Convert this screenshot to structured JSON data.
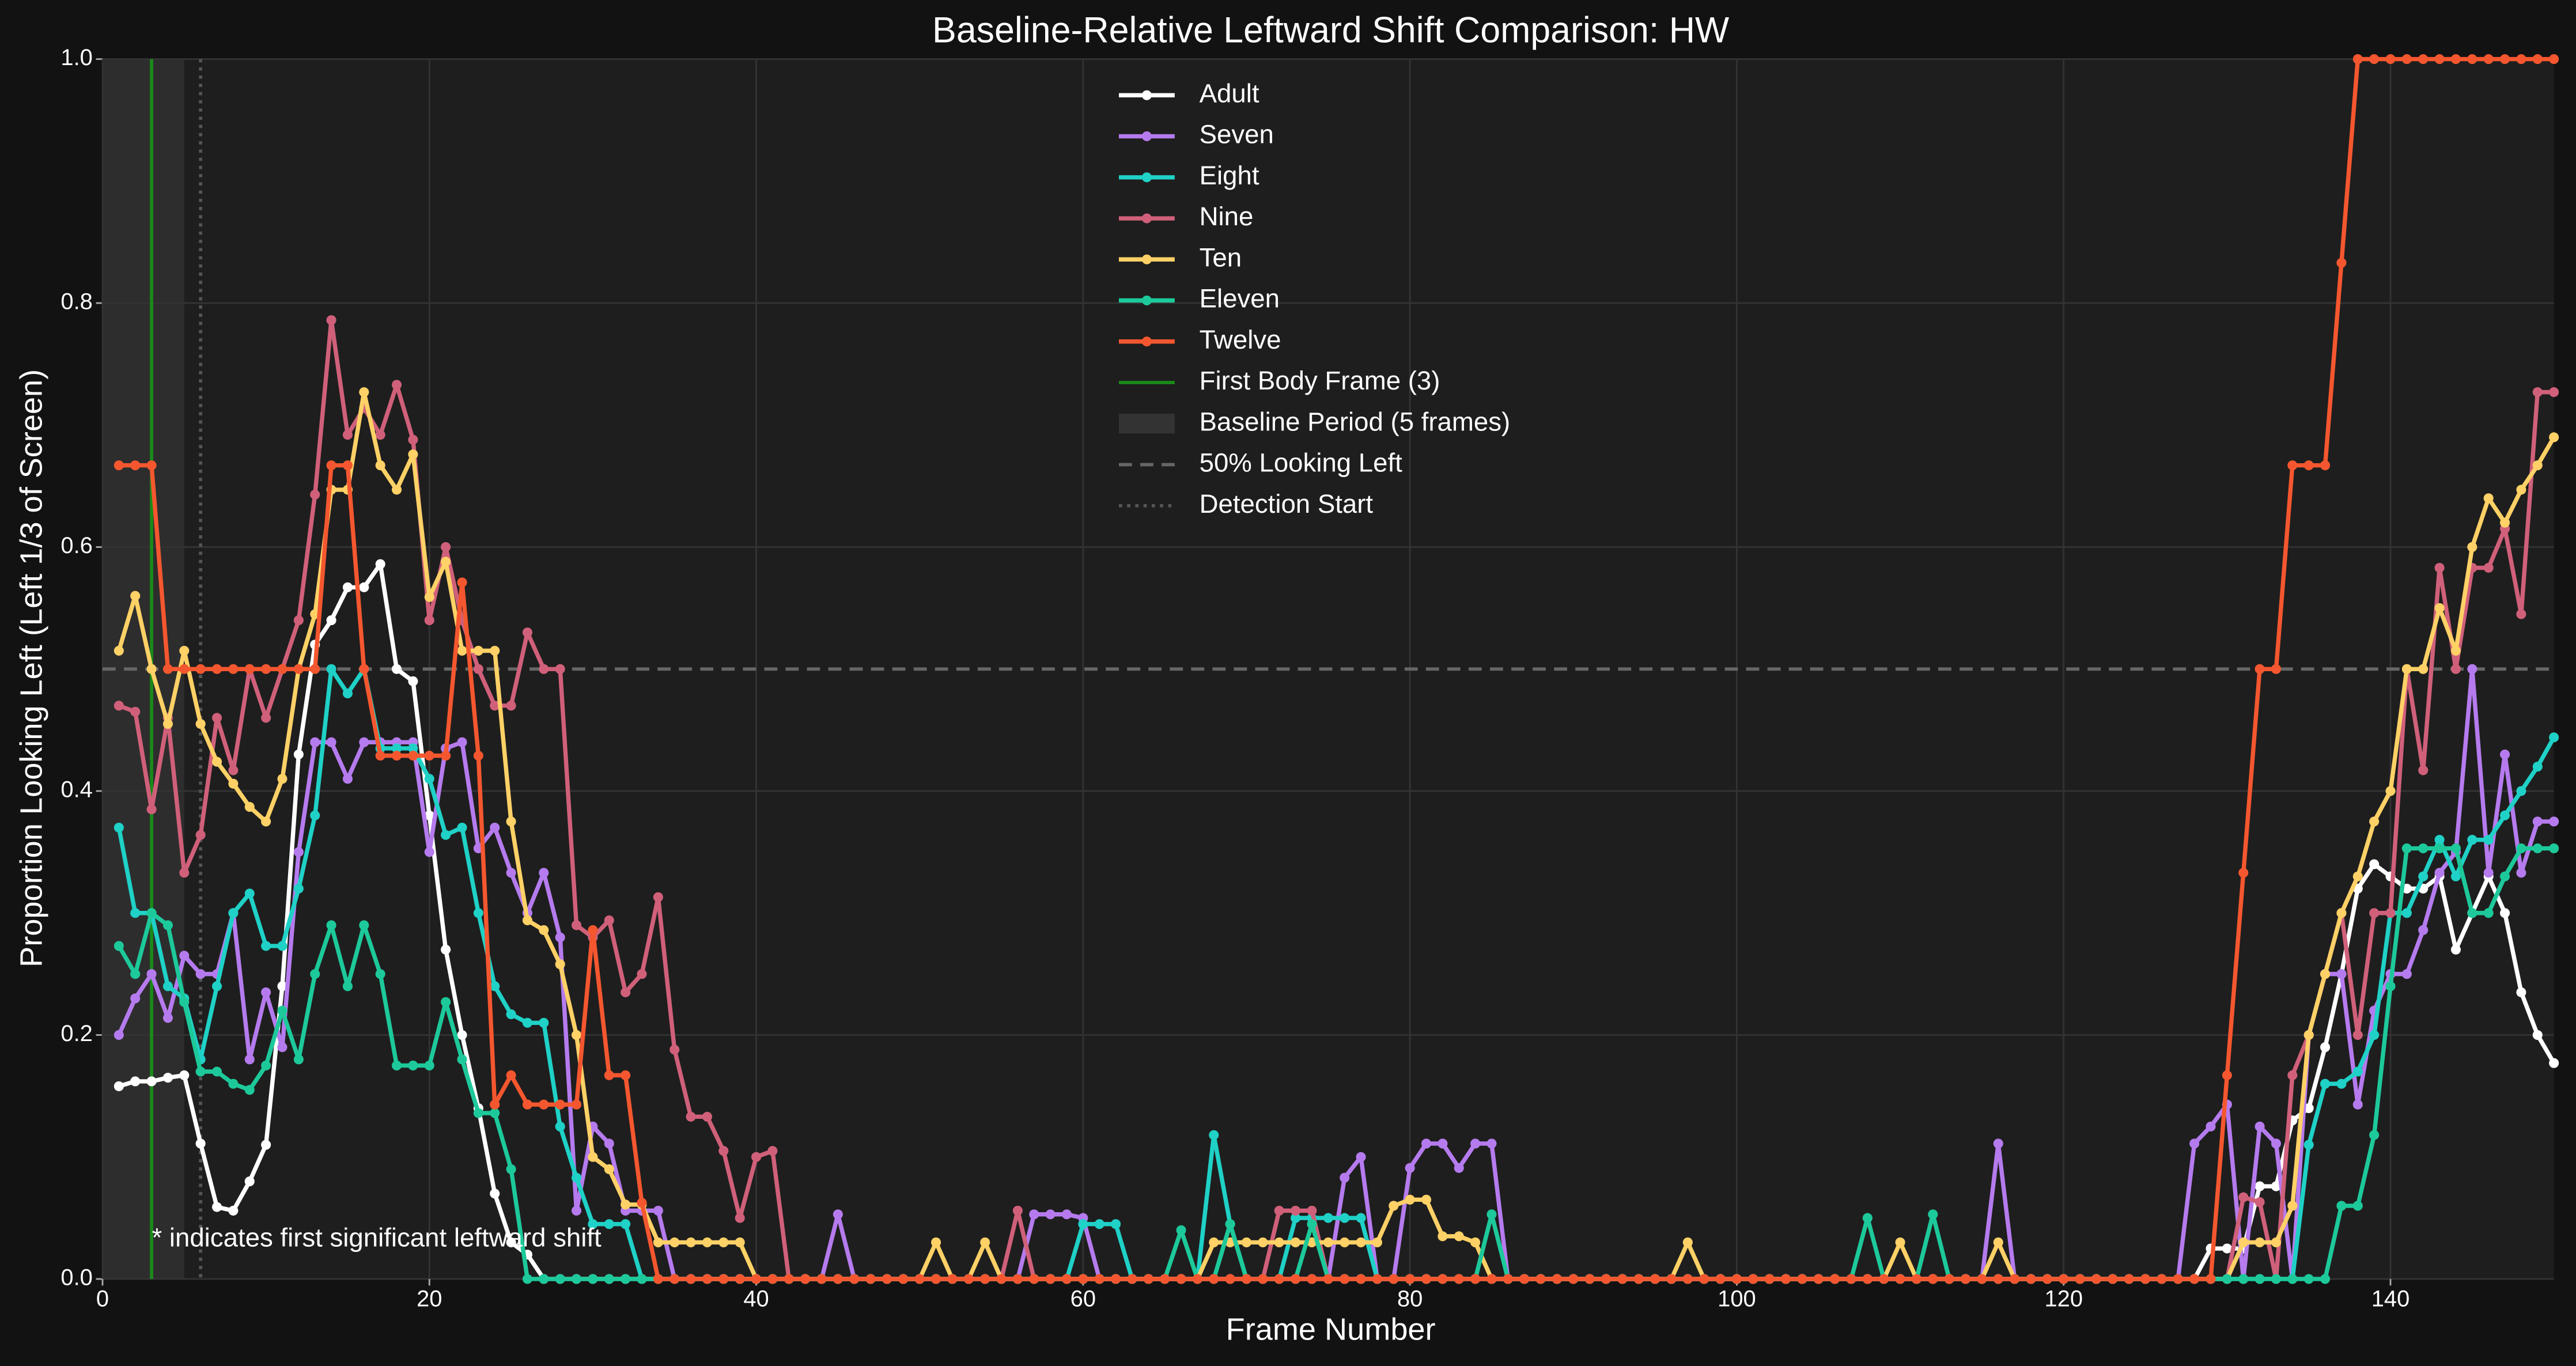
{
  "chart_data": {
    "type": "line",
    "title": "Baseline-Relative Leftward Shift Comparison: HW",
    "x_label": "Frame Number",
    "y_label": "Proportion Looking Left (Left 1/3 of Screen)",
    "annotation": "* indicates first significant leftward shift",
    "xlim": [
      0,
      150
    ],
    "ylim": [
      0,
      1
    ],
    "xticks": [
      0,
      20,
      40,
      60,
      80,
      100,
      120,
      140
    ],
    "yticks": [
      {
        "value": 0,
        "label": "0.0"
      },
      0.2,
      0.4,
      0.6,
      0.8,
      {
        "value": 1,
        "label": "1.0"
      }
    ],
    "grid": true,
    "legend": "upper center",
    "x": [
      1,
      2,
      3,
      4,
      5,
      6,
      7,
      8,
      9,
      10,
      11,
      12,
      13,
      14,
      15,
      16,
      17,
      18,
      19,
      20,
      21,
      22,
      23,
      24,
      25,
      26,
      27,
      28,
      29,
      30,
      31,
      32,
      33,
      34,
      35,
      36,
      37,
      38,
      39,
      40,
      41,
      42,
      43,
      44,
      45,
      46,
      47,
      48,
      49,
      50,
      51,
      52,
      53,
      54,
      55,
      56,
      57,
      58,
      59,
      60,
      61,
      62,
      63,
      64,
      65,
      66,
      67,
      68,
      69,
      70,
      71,
      72,
      73,
      74,
      75,
      76,
      77,
      78,
      79,
      80,
      81,
      82,
      83,
      84,
      85,
      86,
      87,
      88,
      89,
      90,
      91,
      92,
      93,
      94,
      95,
      96,
      97,
      98,
      99,
      100,
      101,
      102,
      103,
      104,
      105,
      106,
      107,
      108,
      109,
      110,
      111,
      112,
      113,
      114,
      115,
      116,
      117,
      118,
      119,
      120,
      121,
      122,
      123,
      124,
      125,
      126,
      127,
      128,
      129,
      130,
      131,
      132,
      133,
      134,
      135,
      136,
      137,
      138,
      139,
      140,
      141,
      142,
      143,
      144,
      145,
      146,
      147,
      148,
      149,
      150
    ],
    "series": [
      {
        "name": "Adult",
        "color": "#ffffff",
        "values": [
          0.158,
          0.162,
          0.162,
          0.165,
          0.167,
          0.111,
          0.059,
          0.056,
          0.08,
          0.11,
          0.24,
          0.43,
          0.52,
          0.54,
          0.567,
          0.567,
          0.586,
          0.5,
          0.49,
          0.38,
          0.27,
          0.2,
          0.14,
          0.07,
          0.03,
          0.02,
          0,
          0,
          0,
          0,
          0,
          0,
          0,
          0,
          0,
          0,
          0,
          0,
          0,
          0,
          0,
          0,
          0,
          0,
          0,
          0,
          0,
          0,
          0,
          0,
          0,
          0,
          0,
          0,
          0,
          0,
          0,
          0,
          0,
          0,
          0,
          0,
          0,
          0,
          0,
          0,
          0,
          0,
          0,
          0,
          0,
          0,
          0,
          0,
          0,
          0,
          0,
          0,
          0,
          0,
          0,
          0,
          0,
          0,
          0,
          0,
          0,
          0,
          0,
          0,
          0,
          0,
          0,
          0,
          0,
          0,
          0,
          0,
          0,
          0,
          0,
          0,
          0,
          0,
          0,
          0,
          0,
          0,
          0,
          0,
          0,
          0,
          0,
          0,
          0,
          0,
          0,
          0,
          0,
          0,
          0,
          0,
          0,
          0,
          0,
          0,
          0,
          0,
          0.025,
          0.025,
          0.025,
          0.076,
          0.076,
          0.13,
          0.14,
          0.19,
          0.25,
          0.32,
          0.34,
          0.33,
          0.32,
          0.32,
          0.33,
          0.27,
          0.3,
          0.33,
          0.3,
          0.235,
          0.2,
          0.177
        ]
      },
      {
        "name": "Seven",
        "color": "#b57bee",
        "values": [
          0.2,
          0.23,
          0.25,
          0.214,
          0.265,
          0.25,
          0.25,
          0.3,
          0.18,
          0.235,
          0.19,
          0.35,
          0.44,
          0.44,
          0.41,
          0.44,
          0.44,
          0.44,
          0.44,
          0.35,
          0.435,
          0.44,
          0.353,
          0.37,
          0.333,
          0.3,
          0.333,
          0.28,
          0.056,
          0.125,
          0.111,
          0.056,
          0.056,
          0.056,
          0,
          0,
          0,
          0,
          0,
          0,
          0,
          0,
          0,
          0,
          0.053,
          0,
          0,
          0,
          0,
          0,
          0,
          0,
          0,
          0,
          0,
          0,
          0.053,
          0.053,
          0.053,
          0.05,
          0,
          0,
          0,
          0,
          0,
          0,
          0,
          0,
          0,
          0,
          0,
          0,
          0,
          0,
          0,
          0.083,
          0.1,
          0,
          0,
          0.091,
          0.111,
          0.111,
          0.091,
          0.111,
          0.111,
          0,
          0,
          0,
          0,
          0,
          0,
          0,
          0,
          0,
          0,
          0,
          0,
          0,
          0,
          0,
          0,
          0,
          0,
          0,
          0,
          0,
          0,
          0,
          0,
          0,
          0,
          0,
          0,
          0,
          0,
          0.111,
          0,
          0,
          0,
          0,
          0,
          0,
          0,
          0,
          0,
          0,
          0,
          0.111,
          0.125,
          0.143,
          0,
          0.125,
          0.111,
          0,
          0.2,
          0.25,
          0.25,
          0.143,
          0.22,
          0.25,
          0.25,
          0.286,
          0.333,
          0.35,
          0.5,
          0.333,
          0.43,
          0.333,
          0.375,
          0.375
        ]
      },
      {
        "name": "Eight",
        "color": "#1fd1c6",
        "values": [
          0.37,
          0.3,
          0.3,
          0.24,
          0.23,
          0.18,
          0.24,
          0.3,
          0.316,
          0.273,
          0.273,
          0.32,
          0.38,
          0.5,
          0.48,
          0.5,
          0.435,
          0.435,
          0.435,
          0.41,
          0.364,
          0.37,
          0.3,
          0.24,
          0.217,
          0.21,
          0.21,
          0.125,
          0.083,
          0.045,
          0.045,
          0.045,
          0,
          0,
          0,
          0,
          0,
          0,
          0,
          0,
          0,
          0,
          0,
          0,
          0,
          0,
          0,
          0,
          0,
          0,
          0,
          0,
          0,
          0,
          0,
          0,
          0,
          0,
          0,
          0.045,
          0.045,
          0.045,
          0,
          0,
          0,
          0,
          0,
          0.118,
          0.045,
          0,
          0,
          0,
          0.05,
          0.05,
          0.05,
          0.05,
          0.05,
          0,
          0,
          0,
          0,
          0,
          0,
          0,
          0,
          0,
          0,
          0,
          0,
          0,
          0,
          0,
          0,
          0,
          0,
          0,
          0,
          0,
          0,
          0,
          0,
          0,
          0,
          0,
          0,
          0,
          0,
          0,
          0,
          0,
          0,
          0,
          0,
          0,
          0,
          0,
          0,
          0,
          0,
          0,
          0,
          0,
          0,
          0,
          0,
          0,
          0,
          0,
          0,
          0,
          0,
          0,
          0,
          0,
          0.11,
          0.16,
          0.16,
          0.17,
          0.2,
          0.3,
          0.3,
          0.33,
          0.36,
          0.33,
          0.36,
          0.36,
          0.38,
          0.4,
          0.42,
          0.444
        ]
      },
      {
        "name": "Nine",
        "color": "#d0607a",
        "values": [
          0.47,
          0.465,
          0.385,
          0.46,
          0.333,
          0.364,
          0.46,
          0.417,
          0.5,
          0.46,
          0.5,
          0.54,
          0.643,
          0.786,
          0.692,
          0.714,
          0.692,
          0.733,
          0.688,
          0.54,
          0.6,
          0.54,
          0.5,
          0.47,
          0.47,
          0.53,
          0.5,
          0.5,
          0.29,
          0.28,
          0.294,
          0.235,
          0.25,
          0.313,
          0.188,
          0.133,
          0.133,
          0.105,
          0.05,
          0.1,
          0.105,
          0,
          0,
          0,
          0,
          0,
          0,
          0,
          0,
          0,
          0,
          0,
          0,
          0,
          0,
          0.056,
          0,
          0,
          0,
          0,
          0,
          0,
          0,
          0,
          0,
          0,
          0,
          0,
          0,
          0,
          0,
          0.056,
          0.056,
          0.056,
          0,
          0,
          0,
          0,
          0,
          0,
          0,
          0,
          0,
          0,
          0,
          0,
          0,
          0,
          0,
          0,
          0,
          0,
          0,
          0,
          0,
          0,
          0,
          0,
          0,
          0,
          0,
          0,
          0,
          0,
          0,
          0,
          0,
          0,
          0,
          0,
          0,
          0,
          0,
          0,
          0,
          0,
          0,
          0,
          0,
          0,
          0,
          0,
          0,
          0,
          0,
          0,
          0,
          0,
          0,
          0,
          0.067,
          0.063,
          0,
          0.167,
          0.2,
          0.25,
          0.3,
          0.2,
          0.3,
          0.3,
          0.5,
          0.417,
          0.583,
          0.5,
          0.583,
          0.583,
          0.615,
          0.545,
          0.727,
          0.727
        ]
      },
      {
        "name": "Ten",
        "color": "#ffd166",
        "values": [
          0.515,
          0.56,
          0.5,
          0.455,
          0.515,
          0.455,
          0.424,
          0.406,
          0.387,
          0.375,
          0.41,
          0.5,
          0.545,
          0.647,
          0.647,
          0.727,
          0.667,
          0.647,
          0.676,
          0.559,
          0.588,
          0.515,
          0.515,
          0.515,
          0.375,
          0.294,
          0.286,
          0.258,
          0.2,
          0.1,
          0.09,
          0.061,
          0.061,
          0.03,
          0.03,
          0.03,
          0.03,
          0.03,
          0.03,
          0,
          0,
          0,
          0,
          0,
          0,
          0,
          0,
          0,
          0,
          0,
          0.03,
          0,
          0,
          0.03,
          0,
          0,
          0,
          0,
          0,
          0,
          0,
          0,
          0,
          0,
          0,
          0,
          0,
          0.03,
          0.03,
          0.03,
          0.03,
          0.03,
          0.03,
          0.03,
          0.03,
          0.03,
          0.03,
          0.03,
          0.06,
          0.065,
          0.065,
          0.035,
          0.035,
          0.03,
          0,
          0,
          0,
          0,
          0,
          0,
          0,
          0,
          0,
          0,
          0,
          0,
          0.03,
          0,
          0,
          0,
          0,
          0,
          0,
          0,
          0,
          0,
          0,
          0,
          0,
          0.03,
          0,
          0,
          0,
          0,
          0,
          0.03,
          0,
          0,
          0,
          0,
          0,
          0,
          0,
          0,
          0,
          0,
          0,
          0,
          0,
          0,
          0.03,
          0.03,
          0.03,
          0.06,
          0.2,
          0.25,
          0.3,
          0.33,
          0.375,
          0.4,
          0.5,
          0.5,
          0.55,
          0.515,
          0.6,
          0.64,
          0.62,
          0.647,
          0.667,
          0.69
        ]
      },
      {
        "name": "Eleven",
        "color": "#1dc99a",
        "values": [
          0.273,
          0.25,
          0.3,
          0.29,
          0.227,
          0.17,
          0.17,
          0.16,
          0.155,
          0.175,
          0.22,
          0.18,
          0.25,
          0.29,
          0.24,
          0.29,
          0.25,
          0.175,
          0.175,
          0.175,
          0.227,
          0.18,
          0.136,
          0.136,
          0.09,
          0,
          0,
          0,
          0,
          0,
          0,
          0,
          0,
          0,
          0,
          0,
          0,
          0,
          0,
          0,
          0,
          0,
          0,
          0,
          0,
          0,
          0,
          0,
          0,
          0,
          0,
          0,
          0,
          0,
          0,
          0,
          0,
          0,
          0,
          0,
          0,
          0,
          0,
          0,
          0,
          0.04,
          0,
          0,
          0.045,
          0,
          0,
          0,
          0,
          0.045,
          0,
          0,
          0,
          0,
          0,
          0,
          0,
          0,
          0,
          0,
          0.053,
          0,
          0,
          0,
          0,
          0,
          0,
          0,
          0,
          0,
          0,
          0,
          0,
          0,
          0,
          0,
          0,
          0,
          0,
          0,
          0,
          0,
          0,
          0.05,
          0,
          0,
          0,
          0.053,
          0,
          0,
          0,
          0,
          0,
          0,
          0,
          0,
          0,
          0,
          0,
          0,
          0,
          0,
          0,
          0,
          0,
          0,
          0,
          0,
          0,
          0,
          0,
          0,
          0.06,
          0.06,
          0.118,
          0.24,
          0.353,
          0.353,
          0.353,
          0.353,
          0.3,
          0.3,
          0.33,
          0.353,
          0.353,
          0.353
        ]
      },
      {
        "name": "Twelve",
        "color": "#f4572f",
        "values": [
          0.667,
          0.667,
          0.667,
          0.5,
          0.5,
          0.5,
          0.5,
          0.5,
          0.5,
          0.5,
          0.5,
          0.5,
          0.5,
          0.667,
          0.667,
          0.5,
          0.429,
          0.429,
          0.429,
          0.429,
          0.429,
          0.571,
          0.429,
          0.143,
          0.167,
          0.143,
          0.143,
          0.143,
          0.143,
          0.286,
          0.167,
          0.167,
          0.0625,
          0,
          0,
          0,
          0,
          0,
          0,
          0,
          0,
          0,
          0,
          0,
          0,
          0,
          0,
          0,
          0,
          0,
          0,
          0,
          0,
          0,
          0,
          0,
          0,
          0,
          0,
          0,
          0,
          0,
          0,
          0,
          0,
          0,
          0,
          0,
          0,
          0,
          0,
          0,
          0,
          0,
          0,
          0,
          0,
          0,
          0,
          0,
          0,
          0,
          0,
          0,
          0,
          0,
          0,
          0,
          0,
          0,
          0,
          0,
          0,
          0,
          0,
          0,
          0,
          0,
          0,
          0,
          0,
          0,
          0,
          0,
          0,
          0,
          0,
          0,
          0,
          0,
          0,
          0,
          0,
          0,
          0,
          0,
          0,
          0,
          0,
          0,
          0,
          0,
          0,
          0,
          0,
          0,
          0,
          0,
          0,
          0.167,
          0.333,
          0.5,
          0.5,
          0.667,
          0.667,
          0.667,
          0.833,
          1,
          1,
          1,
          1,
          1,
          1,
          1,
          1,
          1,
          1,
          1,
          1,
          1
        ]
      }
    ],
    "reference_lines": [
      {
        "name": "First Body Frame (3)",
        "kind": "vline",
        "x": 3,
        "color": "#1a8a1a",
        "style": "solid"
      },
      {
        "name": "Baseline Period (5 frames)",
        "kind": "span",
        "x": [
          0,
          5
        ],
        "color": "#333333"
      },
      {
        "name": "50% Looking Left",
        "kind": "hline",
        "y": 0.5,
        "color": "#666666",
        "style": "dashed"
      },
      {
        "name": "Detection Start",
        "kind": "vline",
        "x": 6,
        "color": "#555555",
        "style": "dotted"
      }
    ]
  }
}
